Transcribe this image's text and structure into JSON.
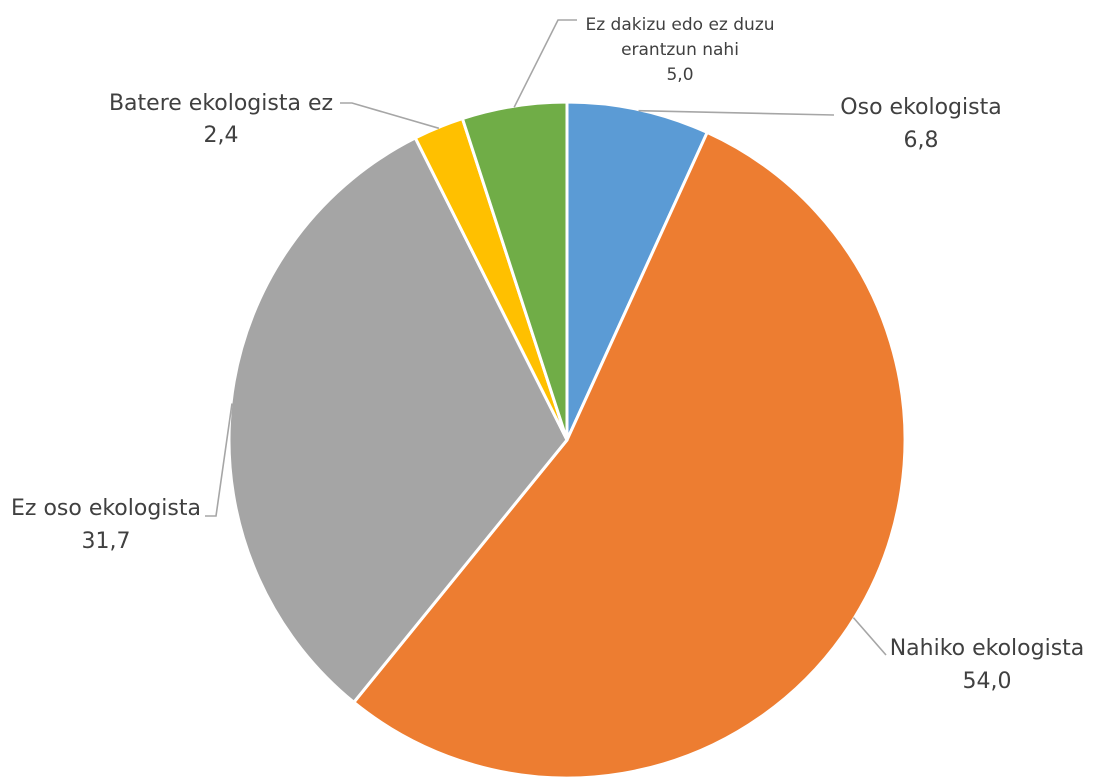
{
  "chart_data": {
    "type": "pie",
    "title": "",
    "start_angle_deg": 0,
    "direction": "clockwise",
    "legend": "none",
    "slices": [
      {
        "label": "Oso ekologista",
        "value": 6.8,
        "value_label": "6,8",
        "color": "#5B9BD5"
      },
      {
        "label": "Nahiko ekologista",
        "value": 54.0,
        "value_label": "54,0",
        "color": "#ED7D31"
      },
      {
        "label": "Ez oso ekologista",
        "value": 31.7,
        "value_label": "31,7",
        "color": "#A5A5A5"
      },
      {
        "label": "Batere ekologista ez",
        "value": 2.4,
        "value_label": "2,4",
        "color": "#FFC000"
      },
      {
        "label": "Ez dakizu edo ez duzu erantzun nahi",
        "label_lines": [
          "Ez dakizu edo ez duzu",
          "erantzun nahi"
        ],
        "value": 5.0,
        "value_label": "5,0",
        "color": "#70AD47"
      }
    ]
  }
}
